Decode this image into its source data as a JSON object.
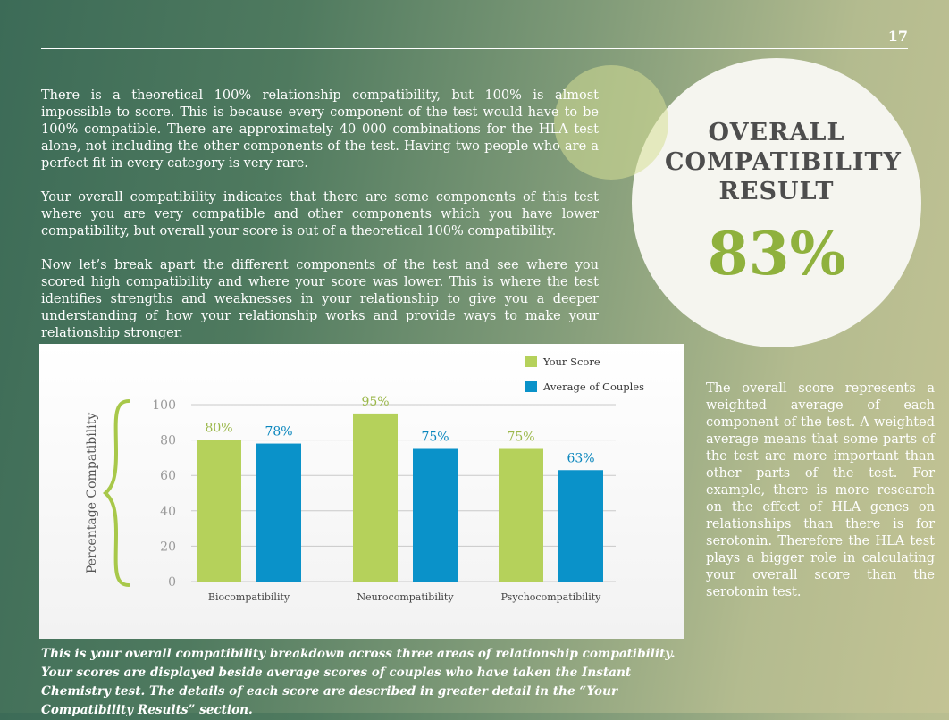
{
  "page_number": "17",
  "intro_paragraphs": [
    "There is a theoretical 100% relationship compatibility, but 100% is almost impossible to score. This is because every component of the test would have to be 100% compatible. There are approximately 40 000 combinations for the HLA test alone, not including the other components of the test. Having two people who are a perfect fit in every category is very rare.",
    "Your overall compatibility indicates that there are some components of this test where you are very compatible and other components which you have lower compatibility, but overall your score is out of a theoretical 100% compatibility.",
    "Now let’s break apart the different components of the test and see where you scored high compatibility and where your score was lower. This is where the test identifies strengths and weaknesses in your relationship to give you a deeper understanding of how your relationship works and provide ways to make your relationship stronger."
  ],
  "result": {
    "title_lines": [
      "OVERALL",
      "COMPATIBILITY",
      "RESULT"
    ],
    "value": "83%"
  },
  "side_note": "The overall score represents a weighted average of each component of the test. A weighted average means that some parts of the test are more important than other parts of the test. For example, there is more research on the effect of HLA genes on relationships than there is for serotonin. Therefore the HLA test plays a bigger role in calculating your overall score than the serotonin test.",
  "caption": "This is your overall compatibility breakdown across three areas of relationship compatibility. Your scores are displayed beside average scores of couples who have taken the Instant Chemistry test. The details of each score are described in greater detail in the “Your Compatibility Results” section.",
  "colors": {
    "your_score": "#b5d15b",
    "average": "#0a92c9",
    "your_label": "#9bb84a",
    "average_label": "#0a86bd",
    "axis_text": "#9a9a9a",
    "gridline": "#c9c9c9",
    "brace": "#a8c84a",
    "ylabel": "#555555"
  },
  "chart_data": {
    "type": "bar",
    "title": "",
    "xlabel": "",
    "ylabel": "Percentage Compatibility",
    "ylim": [
      0,
      100
    ],
    "yticks": [
      0,
      20,
      40,
      60,
      80,
      100
    ],
    "categories": [
      "Biocompatibility",
      "Neurocompatibility",
      "Psychocompatibility"
    ],
    "series": [
      {
        "name": "Your Score",
        "values": [
          80,
          95,
          75
        ],
        "labels": [
          "80%",
          "95%",
          "75%"
        ]
      },
      {
        "name": "Average of Couples",
        "values": [
          78,
          75,
          63
        ],
        "labels": [
          "78%",
          "75%",
          "63%"
        ]
      }
    ],
    "legend_position": "top-right",
    "grid": true
  }
}
